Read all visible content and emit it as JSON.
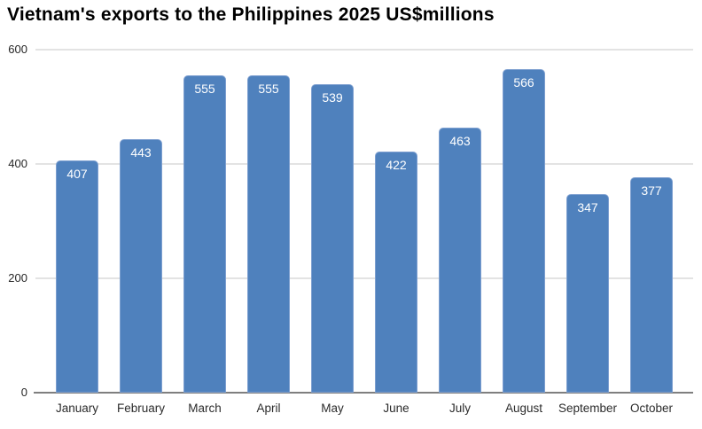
{
  "chart_data": {
    "type": "bar",
    "title": "Vietnam's exports to the Philippines 2025 US$millions",
    "categories": [
      "January",
      "February",
      "March",
      "April",
      "May",
      "June",
      "July",
      "August",
      "September",
      "October"
    ],
    "values": [
      407,
      443,
      555,
      555,
      539,
      422,
      463,
      566,
      347,
      377
    ],
    "xlabel": "",
    "ylabel": "",
    "ylim": [
      0,
      600
    ],
    "yticks": [
      0,
      200,
      400,
      600
    ],
    "grid": true,
    "legend_position": "none",
    "value_labels": "inside-top"
  },
  "style": {
    "bar_color": "#4f81bd",
    "bar_border_color": "#7d9fd0",
    "bar_label_color": "#ffffff",
    "gridline_color": "#e3e3e3",
    "axis_line_color": "#7f7f7f",
    "tick_label_color": "#262626",
    "background_color": "#ffffff",
    "title_color": "#000000"
  }
}
